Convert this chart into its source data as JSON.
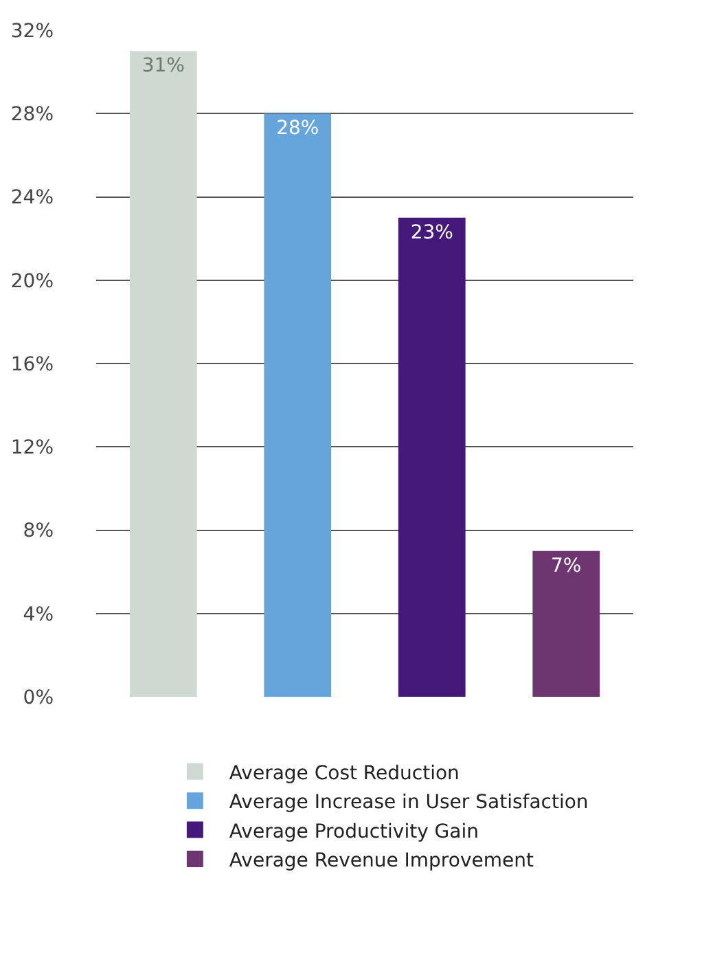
{
  "chart_data": {
    "type": "bar",
    "categories": [
      null,
      null,
      null,
      null
    ],
    "series": [
      {
        "name": "Average Cost Reduction",
        "color": "#cdd9d1",
        "values": [
          31,
          null,
          null,
          null
        ],
        "value_labels": [
          "31%",
          null,
          null,
          null
        ]
      },
      {
        "name": "Average Increase in User Satisfaction",
        "color": "#65a5dc",
        "values": [
          null,
          28,
          null,
          null
        ],
        "value_labels": [
          null,
          "28%",
          null,
          null
        ]
      },
      {
        "name": "Average Productivity Gain",
        "color": "#45197a",
        "values": [
          null,
          null,
          23,
          null
        ],
        "value_labels": [
          null,
          null,
          "23%",
          null
        ]
      },
      {
        "name": "Average Revenue Improvement",
        "color": "#6e3670",
        "values": [
          null,
          null,
          null,
          7
        ],
        "value_labels": [
          null,
          null,
          null,
          "7%"
        ]
      }
    ],
    "ylim": [
      0,
      32
    ],
    "yticks": [
      {
        "value": 0,
        "label": "0%"
      },
      {
        "value": 4,
        "label": "4%"
      },
      {
        "value": 8,
        "label": "8%"
      },
      {
        "value": 12,
        "label": "12%"
      },
      {
        "value": 16,
        "label": "16%"
      },
      {
        "value": 20,
        "label": "20%"
      },
      {
        "value": 24,
        "label": "24%"
      },
      {
        "value": 28,
        "label": "28%"
      },
      {
        "value": 32,
        "label": "32%"
      }
    ],
    "grid": "y",
    "legend": "bottom",
    "tick_labels": "y"
  }
}
